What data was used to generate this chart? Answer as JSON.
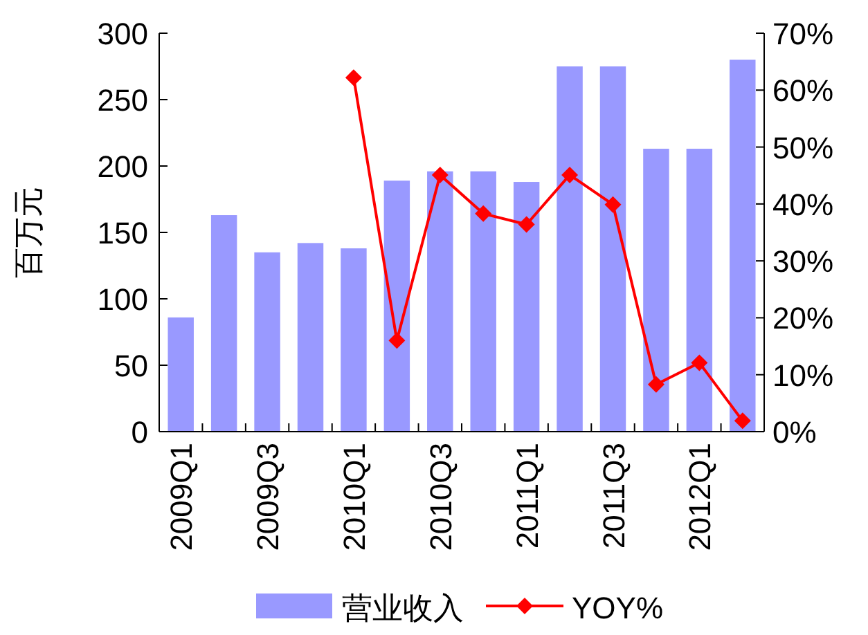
{
  "chart_data": {
    "type": "bar",
    "ylabel": "百万元",
    "categories": [
      "2009Q1",
      null,
      "2009Q3",
      null,
      "2010Q1",
      null,
      "2010Q3",
      null,
      "2011Q1",
      null,
      "2011Q3",
      null,
      "2012Q1",
      null
    ],
    "series": [
      {
        "name": "营业收入",
        "color": "#9999ff",
        "values": [
          86,
          163,
          135,
          142,
          138,
          189,
          196,
          196,
          188,
          275,
          275,
          213,
          213,
          280
        ]
      },
      {
        "name": "YOY%",
        "type": "line",
        "axis": "y2",
        "color": "#ff0000",
        "marker": "diamond",
        "values": [
          null,
          null,
          null,
          null,
          62.2,
          16.0,
          45.1,
          38.3,
          36.4,
          45.1,
          39.9,
          8.3,
          12.1,
          1.9
        ]
      }
    ],
    "ylim": [
      0,
      300
    ],
    "yticks": [
      0,
      50,
      100,
      150,
      200,
      250,
      300
    ],
    "y2lim": [
      0,
      70
    ],
    "y2ticks": [
      {
        "value": 0,
        "label": "0%"
      },
      {
        "value": 10,
        "label": "10%"
      },
      {
        "value": 20,
        "label": "20%"
      },
      {
        "value": 30,
        "label": "30%"
      },
      {
        "value": 40,
        "label": "40%"
      },
      {
        "value": 50,
        "label": "50%"
      },
      {
        "value": 60,
        "label": "60%"
      },
      {
        "value": 70,
        "label": "70%"
      }
    ],
    "legend": "bottom",
    "grid": false
  }
}
